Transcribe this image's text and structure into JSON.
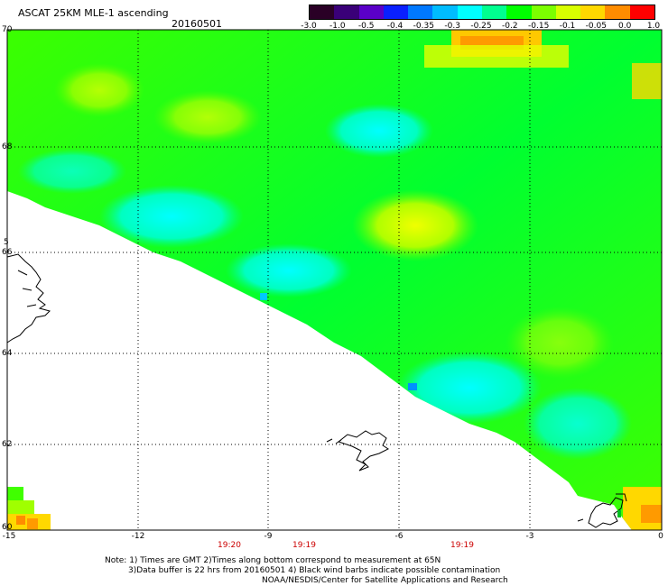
{
  "header": {
    "title": "ASCAT 25KM MLE-1 ascending",
    "date": "20160501"
  },
  "colorbar": {
    "labels": [
      "-3.0",
      "-1.0",
      "-0.5",
      "-0.4",
      "-0.35",
      "-0.3",
      "-0.25",
      "-0.2",
      "-0.15",
      "-0.1",
      "-0.05",
      "0.0",
      "1.0"
    ],
    "colors": [
      "#2a0026",
      "#3a0078",
      "#5a00c8",
      "#0a20ff",
      "#0078ff",
      "#00bcff",
      "#00ffff",
      "#00ff90",
      "#00ff00",
      "#7cff00",
      "#d8ff00",
      "#ffd800",
      "#ff8c00",
      "#ff0000"
    ]
  },
  "map": {
    "lat_labels": [
      "70",
      "68",
      "66",
      "64",
      "62",
      "60"
    ],
    "lon_labels": [
      "-15",
      "-12",
      "-9",
      "-6",
      "-3",
      "0"
    ],
    "time_labels": [
      "19:20",
      "19:19",
      "19:19"
    ],
    "partial_label": "5"
  },
  "footer": {
    "line1": "Note: 1) Times are GMT 2)Times along bottom correspond to measurement at 65N",
    "line2": "3)Data buffer is 22 hrs from 20160501 4) Black wind barbs indicate possible contamination",
    "line3": "NOAA/NESDIS/Center for Satellite Applications and Research"
  }
}
